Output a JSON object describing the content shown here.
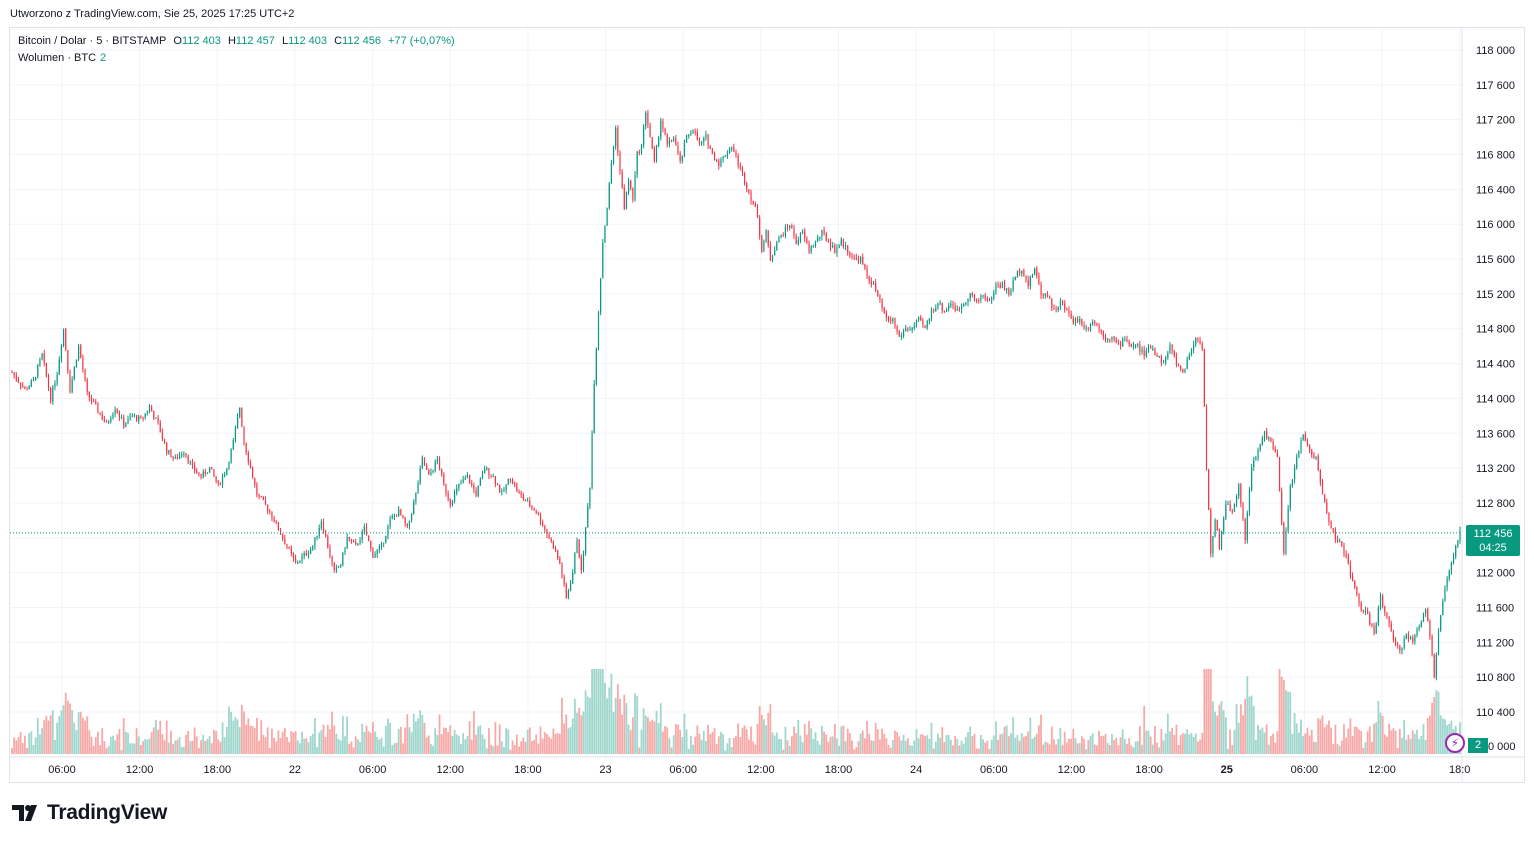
{
  "header": {
    "created": "Utworzono z TradingView.com, Sie 25, 2025 17:25 UTC+2"
  },
  "legend": {
    "symbol": "Bitcoin / Dolar · 5 · BITSTAMP",
    "open_label": "O",
    "open": "112 403",
    "high_label": "H",
    "high": "112 457",
    "low_label": "L",
    "low": "112 403",
    "close_label": "C",
    "close": "112 456",
    "change": "+77 (+0,07%)",
    "volume_label": "Wolumen · BTC",
    "volume_value": "2"
  },
  "price_tag": {
    "price": "112 456",
    "countdown": "04:25"
  },
  "volume_tag": "2",
  "logo": {
    "text": "TradingView"
  },
  "colors": {
    "up": "#089981",
    "down": "#f23645",
    "up_vol": "#9fd6cd",
    "down_vol": "#f7a9a7",
    "grid": "#f0f3fa"
  },
  "chart_data": {
    "type": "candlestick",
    "symbol": "Bitcoin / Dolar",
    "interval": "5",
    "exchange": "BITSTAMP",
    "y_ticks": [
      110400,
      110800,
      111200,
      111600,
      112000,
      112400,
      112800,
      113200,
      113600,
      114000,
      114400,
      114800,
      115200,
      115600,
      116000,
      116400,
      116800,
      117200,
      117600,
      118000
    ],
    "y_tick_labels": [
      "110 400",
      "110 800",
      "111 200",
      "111 600",
      "112 000",
      "112 400",
      "112 800",
      "113 200",
      "113 600",
      "114 000",
      "114 400",
      "114 800",
      "115 200",
      "115 600",
      "116 000",
      "116 400",
      "116 800",
      "117 200",
      "117 600",
      "118 000"
    ],
    "y_extra_label": "0 000",
    "x_tick_labels": [
      "06:00",
      "12:00",
      "18:00",
      "22",
      "06:00",
      "12:00",
      "18:00",
      "23",
      "06:00",
      "12:00",
      "18:00",
      "24",
      "06:00",
      "12:00",
      "18:00",
      "25",
      "06:00",
      "12:00",
      "18:0"
    ],
    "last_price": 112456,
    "path": [
      [
        0,
        114300
      ],
      [
        6,
        114100
      ],
      [
        10,
        114200
      ],
      [
        14,
        114500
      ],
      [
        18,
        114000
      ],
      [
        21,
        114300
      ],
      [
        24,
        114800
      ],
      [
        27,
        114100
      ],
      [
        31,
        114600
      ],
      [
        35,
        114050
      ],
      [
        39,
        113900
      ],
      [
        44,
        113700
      ],
      [
        48,
        113900
      ],
      [
        52,
        113700
      ],
      [
        56,
        113800
      ],
      [
        60,
        113750
      ],
      [
        64,
        113900
      ],
      [
        68,
        113700
      ],
      [
        72,
        113400
      ],
      [
        76,
        113300
      ],
      [
        80,
        113400
      ],
      [
        84,
        113200
      ],
      [
        88,
        113100
      ],
      [
        92,
        113200
      ],
      [
        96,
        113000
      ],
      [
        100,
        113200
      ],
      [
        103,
        113500
      ],
      [
        106,
        113900
      ],
      [
        108,
        113500
      ],
      [
        111,
        113200
      ],
      [
        114,
        112900
      ],
      [
        117,
        112800
      ],
      [
        120,
        112700
      ],
      [
        124,
        112500
      ],
      [
        128,
        112300
      ],
      [
        132,
        112100
      ],
      [
        136,
        112200
      ],
      [
        140,
        112300
      ],
      [
        144,
        112600
      ],
      [
        147,
        112300
      ],
      [
        150,
        112000
      ],
      [
        153,
        112100
      ],
      [
        156,
        112400
      ],
      [
        160,
        112300
      ],
      [
        164,
        112500
      ],
      [
        168,
        112200
      ],
      [
        172,
        112300
      ],
      [
        176,
        112600
      ],
      [
        180,
        112700
      ],
      [
        184,
        112500
      ],
      [
        188,
        112900
      ],
      [
        191,
        113300
      ],
      [
        194,
        113100
      ],
      [
        198,
        113300
      ],
      [
        201,
        113000
      ],
      [
        204,
        112800
      ],
      [
        208,
        113000
      ],
      [
        212,
        113100
      ],
      [
        216,
        112900
      ],
      [
        220,
        113200
      ],
      [
        224,
        113100
      ],
      [
        228,
        112900
      ],
      [
        232,
        113100
      ],
      [
        236,
        112900
      ],
      [
        240,
        112800
      ],
      [
        244,
        112700
      ],
      [
        248,
        112500
      ],
      [
        252,
        112300
      ],
      [
        255,
        112100
      ],
      [
        258,
        111700
      ],
      [
        261,
        112000
      ],
      [
        263,
        112400
      ],
      [
        265,
        112000
      ],
      [
        267,
        112500
      ],
      [
        269,
        113000
      ],
      [
        271,
        114200
      ],
      [
        273,
        115000
      ],
      [
        275,
        115800
      ],
      [
        277,
        116200
      ],
      [
        279,
        116700
      ],
      [
        281,
        117100
      ],
      [
        283,
        116600
      ],
      [
        285,
        116200
      ],
      [
        287,
        116500
      ],
      [
        289,
        116300
      ],
      [
        291,
        116800
      ],
      [
        293,
        116900
      ],
      [
        295,
        117300
      ],
      [
        297,
        117000
      ],
      [
        299,
        116700
      ],
      [
        302,
        117200
      ],
      [
        305,
        116900
      ],
      [
        308,
        117000
      ],
      [
        311,
        116700
      ],
      [
        314,
        117000
      ],
      [
        317,
        117100
      ],
      [
        320,
        116900
      ],
      [
        323,
        117000
      ],
      [
        326,
        116800
      ],
      [
        329,
        116700
      ],
      [
        332,
        116800
      ],
      [
        335,
        116900
      ],
      [
        338,
        116700
      ],
      [
        341,
        116500
      ],
      [
        344,
        116300
      ],
      [
        347,
        116100
      ],
      [
        349,
        115700
      ],
      [
        351,
        115900
      ],
      [
        353,
        115600
      ],
      [
        356,
        115800
      ],
      [
        359,
        115900
      ],
      [
        362,
        116000
      ],
      [
        365,
        115800
      ],
      [
        368,
        115900
      ],
      [
        371,
        115700
      ],
      [
        374,
        115800
      ],
      [
        377,
        115900
      ],
      [
        380,
        115800
      ],
      [
        383,
        115700
      ],
      [
        386,
        115800
      ],
      [
        389,
        115700
      ],
      [
        392,
        115600
      ],
      [
        395,
        115600
      ],
      [
        398,
        115400
      ],
      [
        401,
        115300
      ],
      [
        404,
        115100
      ],
      [
        407,
        114900
      ],
      [
        410,
        114900
      ],
      [
        413,
        114700
      ],
      [
        416,
        114800
      ],
      [
        419,
        114800
      ],
      [
        422,
        114900
      ],
      [
        425,
        114800
      ],
      [
        428,
        115000
      ],
      [
        431,
        115100
      ],
      [
        434,
        115000
      ],
      [
        437,
        115100
      ],
      [
        440,
        115000
      ],
      [
        443,
        115100
      ],
      [
        446,
        115200
      ],
      [
        449,
        115100
      ],
      [
        452,
        115200
      ],
      [
        455,
        115100
      ],
      [
        458,
        115300
      ],
      [
        461,
        115300
      ],
      [
        464,
        115200
      ],
      [
        467,
        115400
      ],
      [
        470,
        115500
      ],
      [
        473,
        115300
      ],
      [
        476,
        115500
      ],
      [
        479,
        115200
      ],
      [
        482,
        115200
      ],
      [
        485,
        115000
      ],
      [
        488,
        115100
      ],
      [
        491,
        115000
      ],
      [
        494,
        114900
      ],
      [
        497,
        114900
      ],
      [
        500,
        114800
      ],
      [
        503,
        114900
      ],
      [
        506,
        114800
      ],
      [
        509,
        114700
      ],
      [
        512,
        114700
      ],
      [
        515,
        114600
      ],
      [
        518,
        114700
      ],
      [
        521,
        114600
      ],
      [
        524,
        114600
      ],
      [
        527,
        114500
      ],
      [
        530,
        114600
      ],
      [
        533,
        114500
      ],
      [
        536,
        114400
      ],
      [
        539,
        114600
      ],
      [
        542,
        114400
      ],
      [
        545,
        114300
      ],
      [
        548,
        114500
      ],
      [
        551,
        114700
      ],
      [
        554,
        114600
      ],
      [
        556,
        113200
      ],
      [
        558,
        112200
      ],
      [
        560,
        112600
      ],
      [
        562,
        112300
      ],
      [
        565,
        112800
      ],
      [
        568,
        112700
      ],
      [
        571,
        113000
      ],
      [
        574,
        112400
      ],
      [
        577,
        113200
      ],
      [
        580,
        113400
      ],
      [
        583,
        113600
      ],
      [
        586,
        113500
      ],
      [
        589,
        113300
      ],
      [
        592,
        112200
      ],
      [
        595,
        113000
      ],
      [
        598,
        113300
      ],
      [
        601,
        113600
      ],
      [
        604,
        113400
      ],
      [
        607,
        113300
      ],
      [
        610,
        112900
      ],
      [
        613,
        112600
      ],
      [
        616,
        112400
      ],
      [
        619,
        112300
      ],
      [
        622,
        112100
      ],
      [
        625,
        111800
      ],
      [
        628,
        111600
      ],
      [
        631,
        111500
      ],
      [
        634,
        111300
      ],
      [
        637,
        111700
      ],
      [
        640,
        111500
      ],
      [
        643,
        111200
      ],
      [
        646,
        111100
      ],
      [
        649,
        111300
      ],
      [
        652,
        111200
      ],
      [
        655,
        111400
      ],
      [
        658,
        111600
      ],
      [
        660,
        111300
      ],
      [
        662,
        110800
      ],
      [
        664,
        111300
      ],
      [
        666,
        111700
      ],
      [
        668,
        111900
      ],
      [
        670,
        112100
      ],
      [
        672,
        112300
      ],
      [
        674,
        112456
      ]
    ]
  }
}
